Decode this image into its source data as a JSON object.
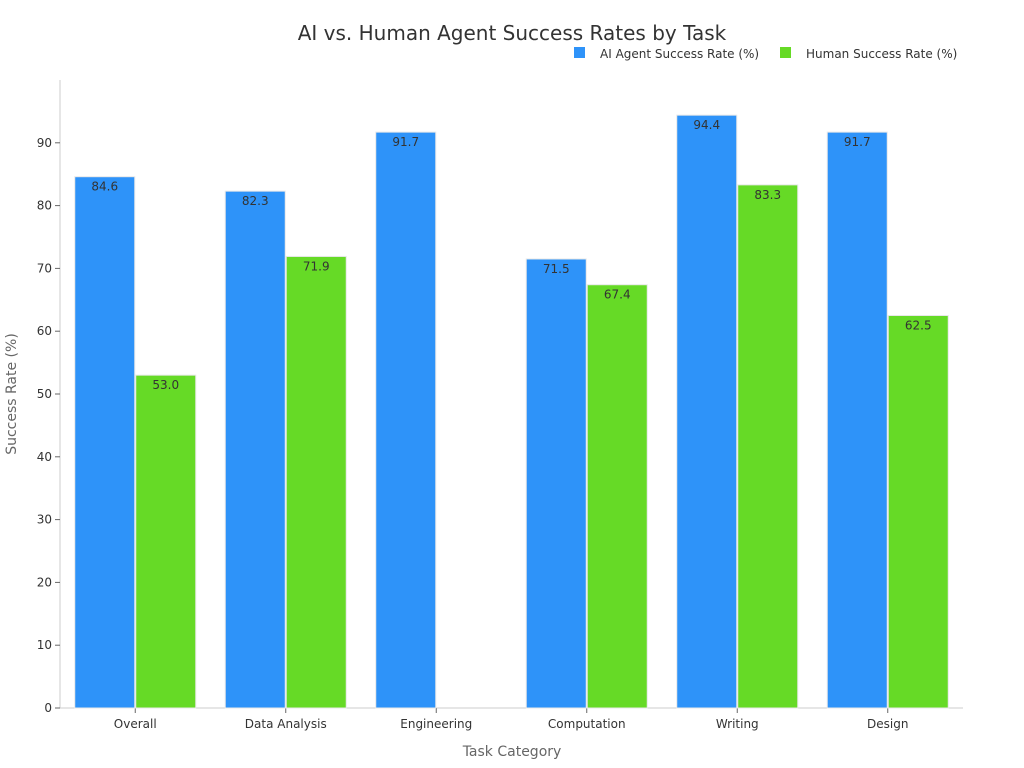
{
  "chart_data": {
    "type": "bar",
    "title": "AI vs. Human Agent Success Rates by Task",
    "xlabel": "Task Category",
    "ylabel": "Success Rate (%)",
    "ylim": [
      0,
      100
    ],
    "yticks": [
      0,
      10,
      20,
      30,
      40,
      50,
      60,
      70,
      80,
      90
    ],
    "grid": false,
    "legend_position": "top-right",
    "categories": [
      "Overall",
      "Data Analysis",
      "Engineering",
      "Computation",
      "Writing",
      "Design"
    ],
    "series": [
      {
        "name": "AI Agent Success Rate (%)",
        "color": "#2e93f9",
        "values": [
          84.6,
          82.3,
          91.7,
          71.5,
          94.4,
          91.7
        ],
        "labels": [
          "84.6",
          "82.3",
          "91.7",
          "71.5",
          "94.4",
          "91.7"
        ]
      },
      {
        "name": "Human Success Rate (%)",
        "color": "#66da26",
        "values": [
          53.0,
          71.9,
          null,
          67.4,
          83.3,
          62.5
        ],
        "labels": [
          "53.0",
          "71.9",
          null,
          "67.4",
          "83.3",
          "62.5"
        ]
      }
    ]
  }
}
